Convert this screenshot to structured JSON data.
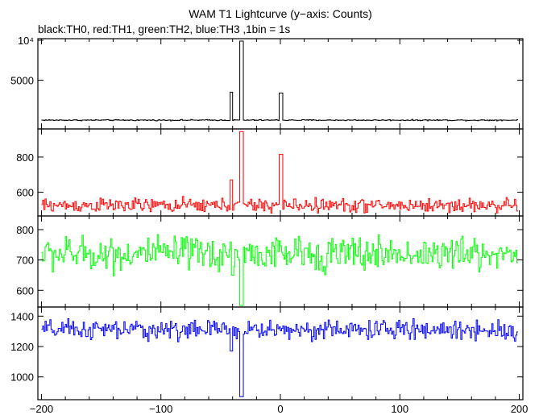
{
  "chart_data": {
    "type": "line",
    "title": "WAM T1 Lightcurve (y−axis: Counts)",
    "subtitle": "black:TH0, red:TH1, green:TH2, blue:TH3 ,1bin = 1s",
    "xlim": [
      -203,
      203
    ],
    "x_ticks": [
      -200,
      -100,
      0,
      100,
      200
    ],
    "x_tick_labels": [
      "−200",
      "−100",
      "0",
      "100",
      "200"
    ],
    "grid": false,
    "panels": [
      {
        "name": "TH0",
        "color": "#000000",
        "ylim": [
          -1100,
          10200
        ],
        "y_ticks": [
          5000,
          10000
        ],
        "y_tick_labels": [
          "5000",
          "10⁴"
        ],
        "baseline": 0,
        "noise": 50,
        "events": [
          {
            "x": [
              -42,
              -41
            ],
            "value": 3500
          },
          {
            "x": [
              -34,
              -32
            ],
            "value": 9900
          },
          {
            "x": [
              -1,
              1
            ],
            "value": 3400
          }
        ]
      },
      {
        "name": "TH1",
        "color": "#ff0000",
        "ylim": [
          465,
          960
        ],
        "y_ticks": [
          600,
          800
        ],
        "y_tick_labels": [
          "600",
          "800"
        ],
        "baseline": 525,
        "noise": 28,
        "events": [
          {
            "x": [
              -42,
              -41
            ],
            "value": 670
          },
          {
            "x": [
              -34,
              -32
            ],
            "value": 945
          },
          {
            "x": [
              -1,
              1
            ],
            "value": 815
          }
        ]
      },
      {
        "name": "TH2",
        "color": "#00ff00",
        "ylim": [
          545,
          845
        ],
        "y_ticks": [
          600,
          700,
          800
        ],
        "y_tick_labels": [
          "600",
          "700",
          "800"
        ],
        "baseline": 720,
        "noise": 40,
        "events": [
          {
            "x": [
              -34,
              -32
            ],
            "value": 550
          },
          {
            "x": [
              -41,
              -40
            ],
            "value": 650
          }
        ]
      },
      {
        "name": "TH3",
        "color": "#0000ff",
        "ylim": [
          850,
          1460
        ],
        "y_ticks": [
          1000,
          1200,
          1400
        ],
        "y_tick_labels": [
          "1000",
          "1200",
          "1400"
        ],
        "baseline": 1310,
        "noise": 45,
        "events": [
          {
            "x": [
              -34,
              -32
            ],
            "value": 870
          },
          {
            "x": [
              -42,
              -41
            ],
            "value": 1170
          }
        ]
      }
    ]
  }
}
